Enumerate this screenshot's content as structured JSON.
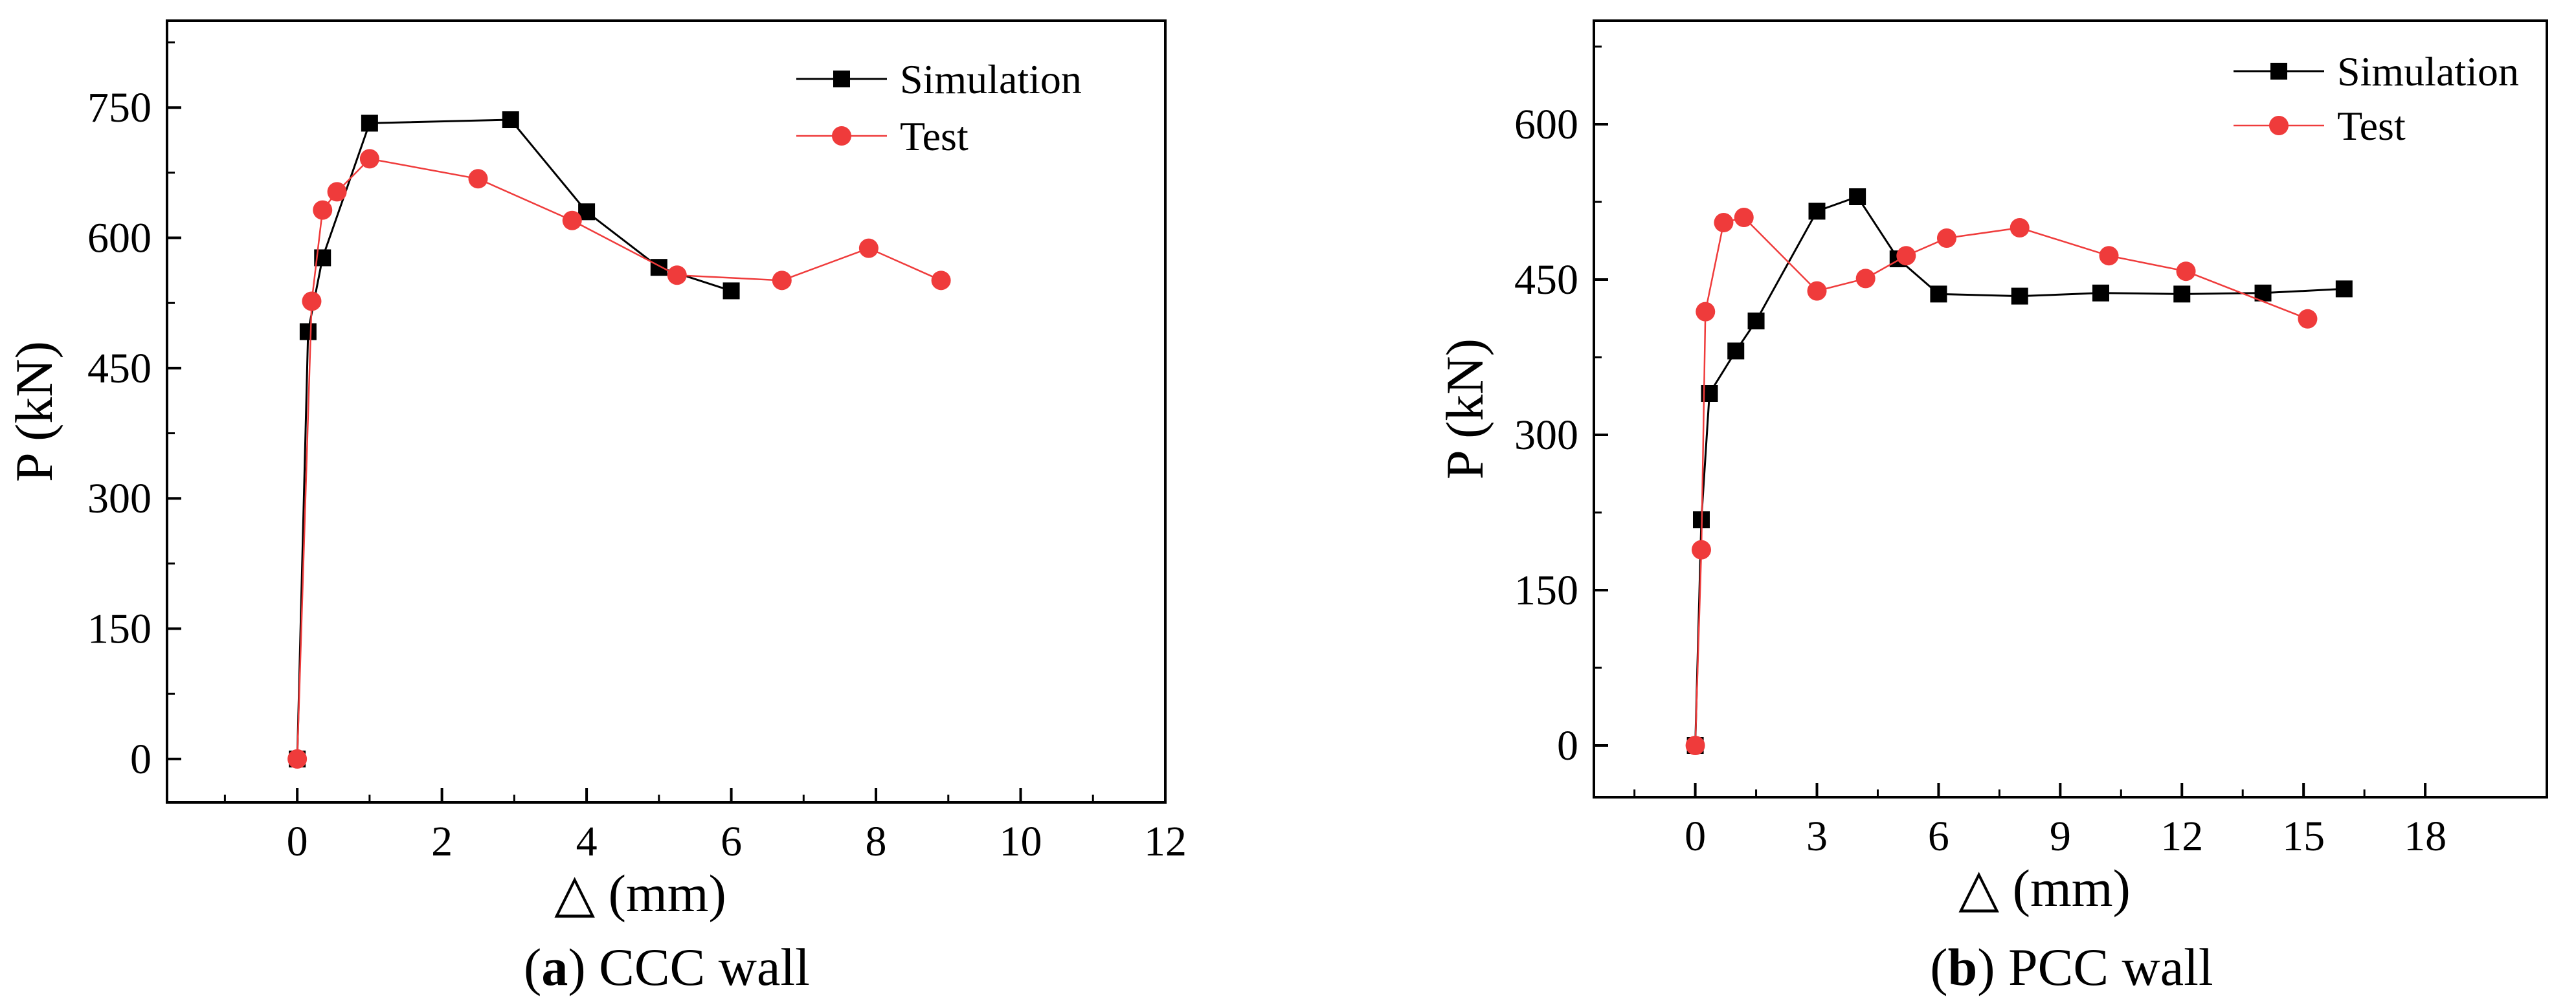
{
  "chart_data": [
    {
      "type": "line",
      "caption_letter": "a",
      "caption_text": "CCC wall",
      "xlabel": "△ (mm)",
      "ylabel": "P (kN)",
      "xlim": [
        -1.8,
        12
      ],
      "ylim": [
        -50,
        850
      ],
      "xticks": [
        0,
        2,
        4,
        6,
        8,
        10,
        12
      ],
      "yticks": [
        0,
        150,
        300,
        450,
        600,
        750
      ],
      "legend_position": "top-right",
      "series": [
        {
          "name": "Simulation",
          "color": "#000000",
          "marker": "square",
          "points": [
            [
              0,
              0
            ],
            [
              0.15,
              492
            ],
            [
              0.35,
              577
            ],
            [
              1.0,
              732
            ],
            [
              2.95,
              736
            ],
            [
              4.0,
              630
            ],
            [
              5.0,
              566
            ],
            [
              6.0,
              539
            ]
          ]
        },
        {
          "name": "Test",
          "color": "#ef3b3b",
          "marker": "circle",
          "points": [
            [
              0,
              0
            ],
            [
              0.2,
              527
            ],
            [
              0.35,
              632
            ],
            [
              0.55,
              653
            ],
            [
              1.0,
              691
            ],
            [
              2.5,
              668
            ],
            [
              3.8,
              620
            ],
            [
              5.25,
              557
            ],
            [
              6.7,
              551
            ],
            [
              7.9,
              588
            ],
            [
              8.9,
              551
            ]
          ]
        }
      ]
    },
    {
      "type": "line",
      "caption_letter": "b",
      "caption_text": "PCC wall",
      "xlabel": "△ (mm)",
      "ylabel": "P (kN)",
      "xlim": [
        -2.5,
        21
      ],
      "ylim": [
        -50,
        700
      ],
      "xticks": [
        0,
        3,
        6,
        9,
        12,
        15,
        18
      ],
      "yticks": [
        0,
        150,
        300,
        450,
        600
      ],
      "legend_position": "top-right",
      "series": [
        {
          "name": "Simulation",
          "color": "#000000",
          "marker": "square",
          "points": [
            [
              0,
              0
            ],
            [
              0.15,
              218
            ],
            [
              0.35,
              340
            ],
            [
              1.0,
              381
            ],
            [
              1.5,
              410
            ],
            [
              3.0,
              516
            ],
            [
              4.0,
              530
            ],
            [
              5.0,
              470
            ],
            [
              6.0,
              436
            ],
            [
              8.0,
              434
            ],
            [
              10.0,
              437
            ],
            [
              12.0,
              436
            ],
            [
              14.0,
              437
            ],
            [
              16.0,
              441
            ]
          ]
        },
        {
          "name": "Test",
          "color": "#ef3b3b",
          "marker": "circle",
          "points": [
            [
              0,
              0
            ],
            [
              0.15,
              189
            ],
            [
              0.25,
              419
            ],
            [
              0.7,
              505
            ],
            [
              1.2,
              510
            ],
            [
              3.0,
              439
            ],
            [
              4.2,
              451
            ],
            [
              5.2,
              473
            ],
            [
              6.2,
              490
            ],
            [
              8.0,
              500
            ],
            [
              10.2,
              473
            ],
            [
              12.1,
              458
            ],
            [
              15.1,
              412
            ]
          ]
        }
      ]
    }
  ]
}
